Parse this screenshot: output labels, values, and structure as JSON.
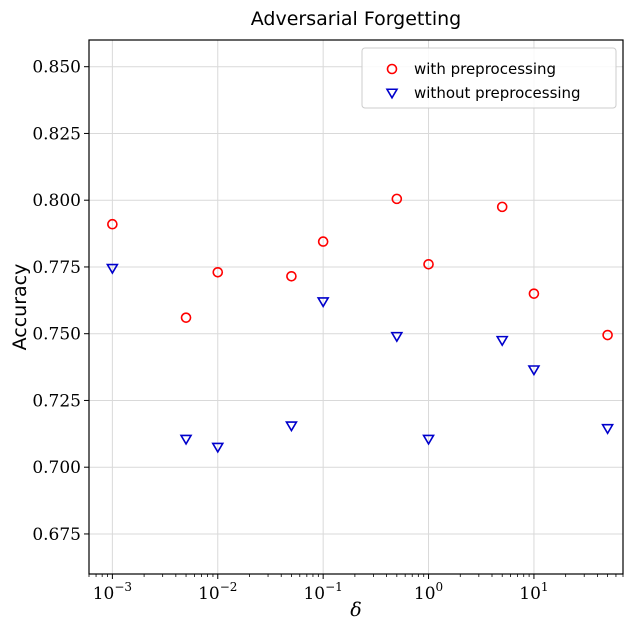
{
  "chart_data": {
    "type": "scatter",
    "title": "Adversarial Forgetting",
    "xlabel": "δ",
    "ylabel": "Accuracy",
    "xscale": "log",
    "xlim": [
      0.0006,
      70
    ],
    "ylim": [
      0.66,
      0.86
    ],
    "grid": true,
    "legend_position": "top-right",
    "xticks": [
      {
        "value": 0.001,
        "base": "10",
        "exp": "−3"
      },
      {
        "value": 0.01,
        "base": "10",
        "exp": "−2"
      },
      {
        "value": 0.1,
        "base": "10",
        "exp": "−1"
      },
      {
        "value": 1,
        "base": "10",
        "exp": "0"
      },
      {
        "value": 10,
        "base": "10",
        "exp": "1"
      }
    ],
    "yticks": [
      {
        "value": 0.675,
        "label": "0.675"
      },
      {
        "value": 0.7,
        "label": "0.700"
      },
      {
        "value": 0.725,
        "label": "0.725"
      },
      {
        "value": 0.75,
        "label": "0.750"
      },
      {
        "value": 0.775,
        "label": "0.775"
      },
      {
        "value": 0.8,
        "label": "0.800"
      },
      {
        "value": 0.825,
        "label": "0.825"
      },
      {
        "value": 0.85,
        "label": "0.850"
      }
    ],
    "series": [
      {
        "name": "with preprocessing",
        "marker": "circle",
        "color": "#ff0000",
        "points": [
          {
            "x": 0.001,
            "y": 0.791
          },
          {
            "x": 0.005,
            "y": 0.756
          },
          {
            "x": 0.01,
            "y": 0.773
          },
          {
            "x": 0.05,
            "y": 0.7715
          },
          {
            "x": 0.1,
            "y": 0.7845
          },
          {
            "x": 0.5,
            "y": 0.8005
          },
          {
            "x": 1,
            "y": 0.776
          },
          {
            "x": 5,
            "y": 0.7975
          },
          {
            "x": 10,
            "y": 0.765
          },
          {
            "x": 50,
            "y": 0.7495
          }
        ]
      },
      {
        "name": "without preprocessing",
        "marker": "triangle-down",
        "color": "#0000cc",
        "points": [
          {
            "x": 0.001,
            "y": 0.7745
          },
          {
            "x": 0.005,
            "y": 0.7105
          },
          {
            "x": 0.01,
            "y": 0.7075
          },
          {
            "x": 0.05,
            "y": 0.7155
          },
          {
            "x": 0.1,
            "y": 0.762
          },
          {
            "x": 0.5,
            "y": 0.749
          },
          {
            "x": 1,
            "y": 0.7105
          },
          {
            "x": 5,
            "y": 0.7475
          },
          {
            "x": 10,
            "y": 0.7365
          },
          {
            "x": 50,
            "y": 0.7145
          }
        ]
      }
    ]
  }
}
